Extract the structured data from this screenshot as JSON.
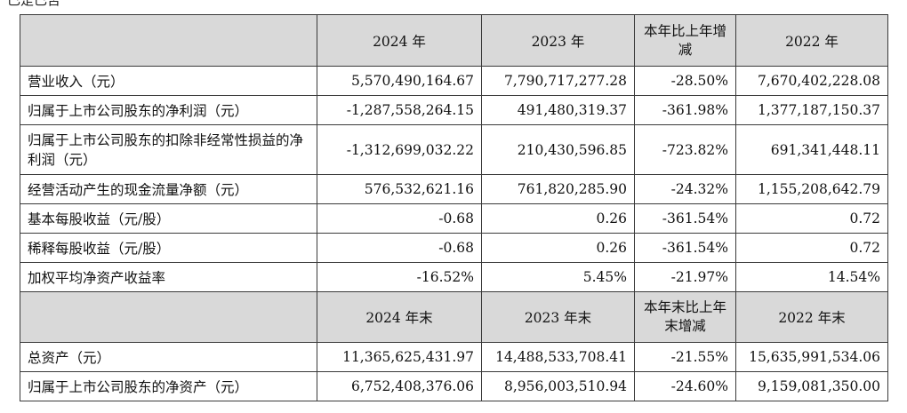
{
  "top_fragment": "已是已否",
  "section1": {
    "headers": [
      "",
      "2024 年",
      "2023 年",
      "本年比上年增减",
      "2022 年"
    ],
    "rows": [
      [
        "营业收入（元）",
        "5,570,490,164.67",
        "7,790,717,277.28",
        "-28.50%",
        "7,670,402,228.08"
      ],
      [
        "归属于上市公司股东的净利润（元）",
        "-1,287,558,264.15",
        "491,480,319.37",
        "-361.98%",
        "1,377,187,150.37"
      ],
      [
        "归属于上市公司股东的扣除非经常性损益的净利润（元）",
        "-1,312,699,032.22",
        "210,430,596.85",
        "-723.82%",
        "691,341,448.11"
      ],
      [
        "经营活动产生的现金流量净额（元）",
        "576,532,621.16",
        "761,820,285.90",
        "-24.32%",
        "1,155,208,642.79"
      ],
      [
        "基本每股收益（元/股）",
        "-0.68",
        "0.26",
        "-361.54%",
        "0.72"
      ],
      [
        "稀释每股收益（元/股）",
        "-0.68",
        "0.26",
        "-361.54%",
        "0.72"
      ],
      [
        "加权平均净资产收益率",
        "-16.52%",
        "5.45%",
        "-21.97%",
        "14.54%"
      ]
    ]
  },
  "section2": {
    "headers": [
      "",
      "2024 年末",
      "2023 年末",
      "本年末比上年末增减",
      "2022 年末"
    ],
    "rows": [
      [
        "总资产（元）",
        "11,365,625,431.97",
        "14,488,533,708.41",
        "-21.55%",
        "15,635,991,534.06"
      ],
      [
        "归属于上市公司股东的净资产（元）",
        "6,752,408,376.06",
        "8,956,003,510.94",
        "-24.60%",
        "9,159,081,350.00"
      ]
    ]
  }
}
